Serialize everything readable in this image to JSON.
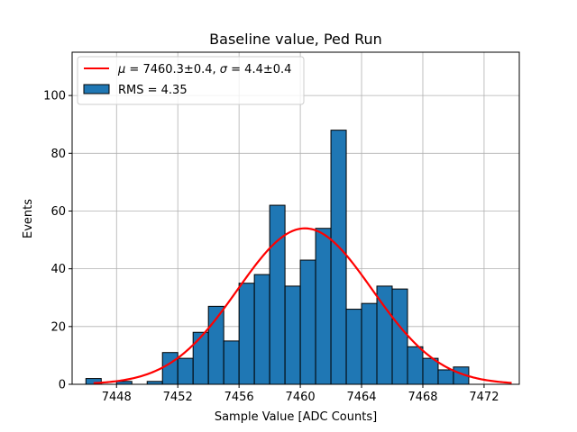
{
  "chart_data": {
    "type": "bar",
    "title": "Baseline value, Ped Run",
    "xlabel": "Sample Value [ADC Counts]",
    "ylabel": "Events",
    "xlim": [
      7445.1,
      7474.3
    ],
    "ylim": [
      0,
      115
    ],
    "xticks": [
      7448,
      7452,
      7456,
      7460,
      7464,
      7468,
      7472
    ],
    "yticks": [
      0,
      20,
      40,
      60,
      80,
      100
    ],
    "grid": true,
    "legend_position": "top-left",
    "bin_edges": [
      7446,
      7447,
      7448,
      7449,
      7450,
      7451,
      7452,
      7453,
      7454,
      7455,
      7456,
      7457,
      7458,
      7459,
      7460,
      7461,
      7462,
      7463,
      7464,
      7465,
      7466,
      7467,
      7468,
      7469,
      7470,
      7471
    ],
    "values": [
      2,
      0,
      1,
      0,
      1,
      11,
      9,
      18,
      27,
      15,
      35,
      38,
      62,
      34,
      43,
      54,
      88,
      26,
      28,
      34,
      33,
      13,
      9,
      5,
      6
    ],
    "series": [
      {
        "name": "RMS = 4.35",
        "kind": "histogram",
        "color": "#1f77b4",
        "edgecolor": "#000000"
      },
      {
        "name": "$\\mu = 7460.3\\pm0.4$, $\\sigma = 4.4\\pm0.4$",
        "kind": "gaussian-fit",
        "color": "#ff0000",
        "mu": 7460.3,
        "sigma": 4.4,
        "amplitude": 54,
        "x_range": [
          7446.5,
          7473.8
        ]
      }
    ]
  },
  "legend": {
    "fit_label_parts": [
      "μ",
      " = 7460.3±0.4, ",
      "σ",
      " = 4.4±0.4"
    ],
    "hist_label": "RMS = 4.35"
  }
}
